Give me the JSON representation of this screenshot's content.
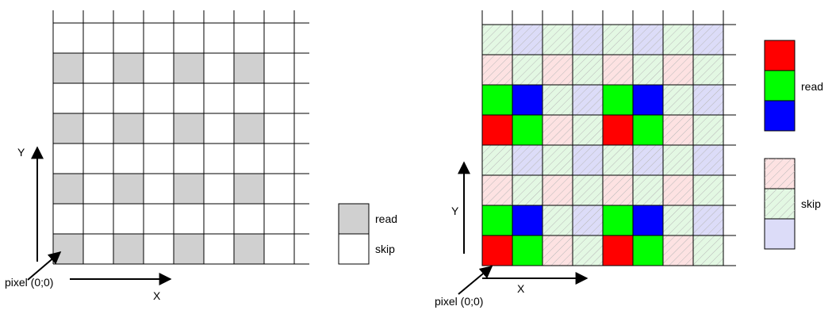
{
  "left_diagram": {
    "rows": 8,
    "cols": 8,
    "read_pattern": "even columns of every other row starting from pixel (0;0)",
    "axis_x_label": "X",
    "axis_y_label": "Y",
    "origin_label": "pixel (0;0)",
    "legend": [
      {
        "key": "read",
        "label": "read",
        "color": "#d0d0d0"
      },
      {
        "key": "skip",
        "label": "skip",
        "color": "#ffffff"
      }
    ]
  },
  "right_diagram": {
    "rows": 8,
    "cols": 8,
    "axis_x_label": "X",
    "axis_y_label": "Y",
    "origin_label": "pixel (0;0)",
    "legend_read_label": "read",
    "legend_skip_label": "skip",
    "read_colors": [
      "#ff0000",
      "#00ff00",
      "#0000ff"
    ],
    "skip_colors": [
      "#fde2e2",
      "#e3f8e3",
      "#dcdcf8"
    ]
  },
  "colors": {
    "grid_line": "#000000",
    "read_gray": "#d0d0d0",
    "red": "#ff0000",
    "green": "#00ff00",
    "blue": "#0000ff",
    "skip_red": "#fde2e2",
    "skip_green": "#e3f8e3",
    "skip_blue": "#dcdcf8"
  }
}
